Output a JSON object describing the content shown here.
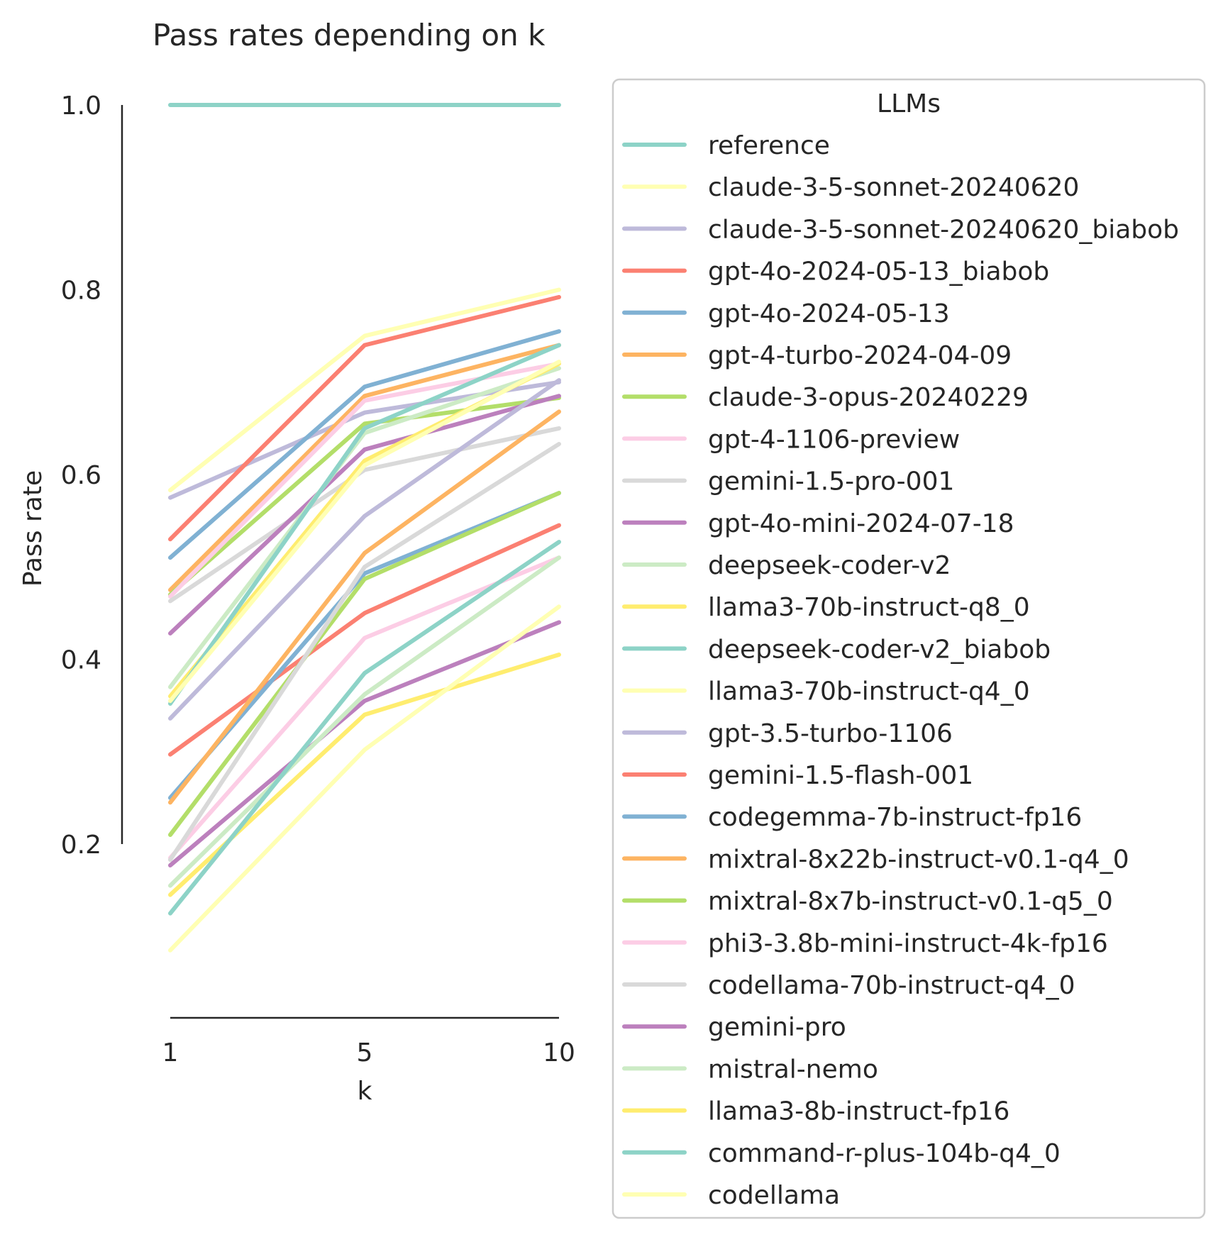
{
  "chart_data": {
    "type": "line",
    "title": "Pass rates depending on k",
    "xlabel": "k",
    "ylabel": "Pass rate",
    "x": [
      1,
      5,
      10
    ],
    "x_tick_labels": [
      "1",
      "5",
      "10"
    ],
    "y_ticks": [
      0.2,
      0.4,
      0.6,
      0.8,
      1.0
    ],
    "y_tick_labels": [
      "0.2",
      "0.4",
      "0.6",
      "0.8",
      "1.0"
    ],
    "ylim": [
      0.2,
      1.0
    ],
    "grid": false,
    "legend": {
      "title": "LLMs",
      "placement": "outside-right"
    },
    "series": [
      {
        "name": "reference",
        "color": "#8dd3c7",
        "values": [
          1.0,
          1.0,
          1.0
        ]
      },
      {
        "name": "claude-3-5-sonnet-20240620",
        "color": "#ffffb3",
        "values": [
          0.583,
          0.75,
          0.8
        ]
      },
      {
        "name": "claude-3-5-sonnet-20240620_biabob",
        "color": "#bebada",
        "values": [
          0.575,
          0.667,
          0.7
        ]
      },
      {
        "name": "gpt-4o-2024-05-13_biabob",
        "color": "#fb8072",
        "values": [
          0.53,
          0.74,
          0.792
        ]
      },
      {
        "name": "gpt-4o-2024-05-13",
        "color": "#80b1d3",
        "values": [
          0.51,
          0.695,
          0.755
        ]
      },
      {
        "name": "gpt-4-turbo-2024-04-09",
        "color": "#fdb462",
        "values": [
          0.475,
          0.685,
          0.74
        ]
      },
      {
        "name": "claude-3-opus-20240229",
        "color": "#b3de69",
        "values": [
          0.47,
          0.655,
          0.683
        ]
      },
      {
        "name": "gpt-4-1106-preview",
        "color": "#fccde5",
        "values": [
          0.468,
          0.68,
          0.72
        ]
      },
      {
        "name": "gemini-1.5-pro-001",
        "color": "#d9d9d9",
        "values": [
          0.463,
          0.605,
          0.65
        ]
      },
      {
        "name": "gpt-4o-mini-2024-07-18",
        "color": "#bc80bd",
        "values": [
          0.428,
          0.627,
          0.685
        ]
      },
      {
        "name": "deepseek-coder-v2",
        "color": "#ccebc5",
        "values": [
          0.37,
          0.645,
          0.715
        ]
      },
      {
        "name": "llama3-70b-instruct-q8_0",
        "color": "#ffed6f",
        "values": [
          0.36,
          0.615,
          0.72
        ]
      },
      {
        "name": "deepseek-coder-v2_biabob",
        "color": "#8dd3c7",
        "values": [
          0.352,
          0.65,
          0.74
        ]
      },
      {
        "name": "llama3-70b-instruct-q4_0",
        "color": "#ffffb3",
        "values": [
          0.355,
          0.61,
          0.722
        ]
      },
      {
        "name": "gpt-3.5-turbo-1106",
        "color": "#bebada",
        "values": [
          0.336,
          0.555,
          0.702
        ]
      },
      {
        "name": "gemini-1.5-flash-001",
        "color": "#fb8072",
        "values": [
          0.297,
          0.45,
          0.545
        ]
      },
      {
        "name": "codegemma-7b-instruct-fp16",
        "color": "#80b1d3",
        "values": [
          0.25,
          0.493,
          0.58
        ]
      },
      {
        "name": "mixtral-8x22b-instruct-v0.1-q4_0",
        "color": "#fdb462",
        "values": [
          0.245,
          0.515,
          0.668
        ]
      },
      {
        "name": "mixtral-8x7b-instruct-v0.1-q5_0",
        "color": "#b3de69",
        "values": [
          0.21,
          0.487,
          0.58
        ]
      },
      {
        "name": "phi3-3.8b-mini-instruct-4k-fp16",
        "color": "#fccde5",
        "values": [
          0.185,
          0.423,
          0.51
        ]
      },
      {
        "name": "codellama-70b-instruct-q4_0",
        "color": "#d9d9d9",
        "values": [
          0.183,
          0.5,
          0.633
        ]
      },
      {
        "name": "gemini-pro",
        "color": "#bc80bd",
        "values": [
          0.177,
          0.355,
          0.44
        ]
      },
      {
        "name": "mistral-nemo",
        "color": "#ccebc5",
        "values": [
          0.155,
          0.362,
          0.51
        ]
      },
      {
        "name": "llama3-8b-instruct-fp16",
        "color": "#ffed6f",
        "values": [
          0.145,
          0.34,
          0.405
        ]
      },
      {
        "name": "command-r-plus-104b-q4_0",
        "color": "#8dd3c7",
        "values": [
          0.125,
          0.385,
          0.527
        ]
      },
      {
        "name": "codellama",
        "color": "#ffffb3",
        "values": [
          0.085,
          0.302,
          0.457
        ]
      }
    ]
  }
}
